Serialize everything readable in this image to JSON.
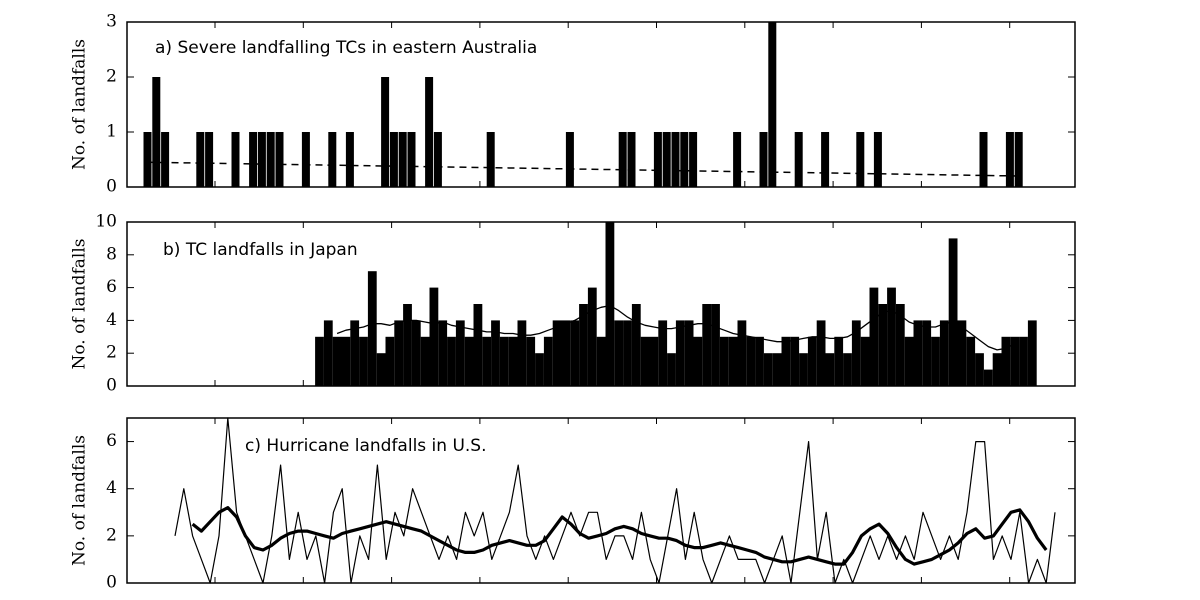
{
  "chart_data": [
    {
      "type": "bar",
      "title": "a) Severe landfalling TCs in eastern Australia",
      "ylabel": "No. of landfalls",
      "ylim": [
        0,
        3
      ],
      "yticks": [
        0,
        1,
        2,
        3
      ],
      "series": [
        {
          "type": "bar",
          "color": "#000000",
          "values": [
            1,
            2,
            1,
            0,
            0,
            0,
            1,
            1,
            0,
            0,
            1,
            0,
            1,
            1,
            1,
            1,
            0,
            0,
            1,
            0,
            0,
            1,
            0,
            1,
            0,
            0,
            0,
            2,
            1,
            1,
            1,
            0,
            2,
            1,
            0,
            0,
            0,
            0,
            0,
            1,
            0,
            0,
            0,
            0,
            0,
            0,
            0,
            0,
            1,
            0,
            0,
            0,
            0,
            0,
            1,
            1,
            0,
            0,
            1,
            1,
            1,
            1,
            1,
            0,
            0,
            0,
            0,
            1,
            0,
            0,
            1,
            3,
            0,
            0,
            1,
            0,
            0,
            1,
            0,
            0,
            0,
            1,
            0,
            1,
            0,
            0,
            0,
            0,
            0,
            0,
            0,
            0,
            0,
            0,
            0,
            1,
            0,
            0,
            1,
            1
          ]
        }
      ],
      "trend": {
        "color": "#000000",
        "values": [
          0.45,
          0.2
        ]
      }
    },
    {
      "type": "bar",
      "title": "b) TC landfalls in Japan",
      "ylabel": "No. of landfalls",
      "ylim": [
        0,
        10
      ],
      "yticks": [
        0,
        2,
        4,
        6,
        8,
        10
      ],
      "series": [
        {
          "type": "bar",
          "color": "#000000",
          "values": [
            3,
            4,
            3,
            3,
            4,
            3,
            7,
            2,
            3,
            4,
            5,
            4,
            3,
            6,
            4,
            3,
            4,
            3,
            5,
            3,
            4,
            3,
            3,
            4,
            3,
            2,
            3,
            4,
            4,
            4,
            5,
            6,
            3,
            10,
            4,
            4,
            5,
            3,
            3,
            4,
            2,
            4,
            4,
            3,
            5,
            5,
            3,
            3,
            4,
            3,
            3,
            2,
            2,
            3,
            3,
            2,
            3,
            4,
            2,
            3,
            2,
            4,
            3,
            6,
            5,
            6,
            5,
            3,
            4,
            4,
            3,
            4,
            9,
            4,
            3,
            2,
            1,
            2,
            3,
            3,
            3,
            4
          ]
        },
        {
          "type": "line",
          "color": "#000000",
          "width": 1.3,
          "values": [
            null,
            null,
            3.2,
            3.4,
            3.5,
            3.6,
            3.8,
            3.8,
            3.7,
            3.9,
            4.0,
            4.0,
            3.9,
            3.8,
            3.9,
            3.7,
            3.6,
            3.5,
            3.4,
            3.3,
            3.3,
            3.2,
            3.2,
            3.1,
            3.1,
            3.2,
            3.4,
            3.6,
            3.8,
            4.0,
            4.3,
            4.6,
            4.8,
            4.9,
            4.6,
            4.2,
            3.9,
            3.7,
            3.6,
            3.5,
            3.5,
            3.6,
            3.7,
            3.8,
            3.8,
            3.6,
            3.4,
            3.2,
            3.1,
            3.0,
            2.9,
            2.8,
            2.7,
            2.7,
            2.8,
            2.9,
            3.0,
            3.0,
            2.9,
            2.9,
            3.0,
            3.3,
            3.7,
            4.1,
            4.5,
            4.6,
            4.3,
            3.9,
            3.7,
            3.6,
            3.6,
            3.8,
            3.9,
            3.6,
            3.2,
            2.8,
            2.4,
            2.2,
            2.3,
            2.6,
            null,
            null
          ]
        }
      ]
    },
    {
      "type": "line",
      "title": "c) Hurricane landfalls in U.S.",
      "ylabel": "No. of landfalls",
      "ylim": [
        0,
        7
      ],
      "yticks": [
        0,
        2,
        4,
        6
      ],
      "series": [
        {
          "type": "line",
          "color": "#000000",
          "width": 1.2,
          "values": [
            2,
            4,
            2,
            1,
            0,
            2,
            7,
            3,
            2,
            1,
            0,
            2,
            5,
            1,
            3,
            1,
            2,
            0,
            3,
            4,
            0,
            2,
            1,
            5,
            1,
            3,
            2,
            4,
            3,
            2,
            1,
            2,
            1,
            3,
            2,
            3,
            1,
            2,
            3,
            5,
            2,
            1,
            2,
            1,
            2,
            3,
            2,
            3,
            3,
            1,
            2,
            2,
            1,
            3,
            1,
            0,
            2,
            4,
            1,
            3,
            1,
            0,
            1,
            2,
            1,
            1,
            1,
            0,
            1,
            2,
            0,
            3,
            6,
            1,
            3,
            0,
            1,
            0,
            1,
            2,
            1,
            2,
            1,
            2,
            1,
            3,
            2,
            1,
            2,
            1,
            3,
            6,
            6,
            1,
            2,
            1,
            3,
            0,
            1,
            0,
            3
          ]
        },
        {
          "type": "line",
          "color": "#000000",
          "width": 3.2,
          "values": [
            null,
            null,
            2.5,
            2.2,
            2.6,
            3.0,
            3.2,
            2.8,
            2.0,
            1.5,
            1.4,
            1.6,
            1.9,
            2.1,
            2.2,
            2.2,
            2.1,
            2.0,
            1.9,
            2.1,
            2.2,
            2.3,
            2.4,
            2.5,
            2.6,
            2.5,
            2.4,
            2.3,
            2.2,
            2.0,
            1.8,
            1.6,
            1.4,
            1.3,
            1.3,
            1.4,
            1.6,
            1.7,
            1.8,
            1.7,
            1.6,
            1.6,
            1.8,
            2.3,
            2.8,
            2.5,
            2.1,
            1.9,
            2.0,
            2.1,
            2.3,
            2.4,
            2.3,
            2.1,
            2.0,
            1.9,
            1.9,
            1.8,
            1.6,
            1.5,
            1.5,
            1.6,
            1.7,
            1.6,
            1.5,
            1.4,
            1.3,
            1.1,
            1.0,
            0.9,
            0.9,
            1.0,
            1.1,
            1.0,
            0.9,
            0.8,
            0.8,
            1.3,
            2.0,
            2.3,
            2.5,
            2.1,
            1.5,
            1.0,
            0.8,
            0.9,
            1.0,
            1.2,
            1.4,
            1.7,
            2.1,
            2.3,
            1.9,
            2.0,
            2.5,
            3.0,
            3.1,
            2.6,
            1.9,
            1.4,
            null
          ]
        }
      ]
    }
  ]
}
